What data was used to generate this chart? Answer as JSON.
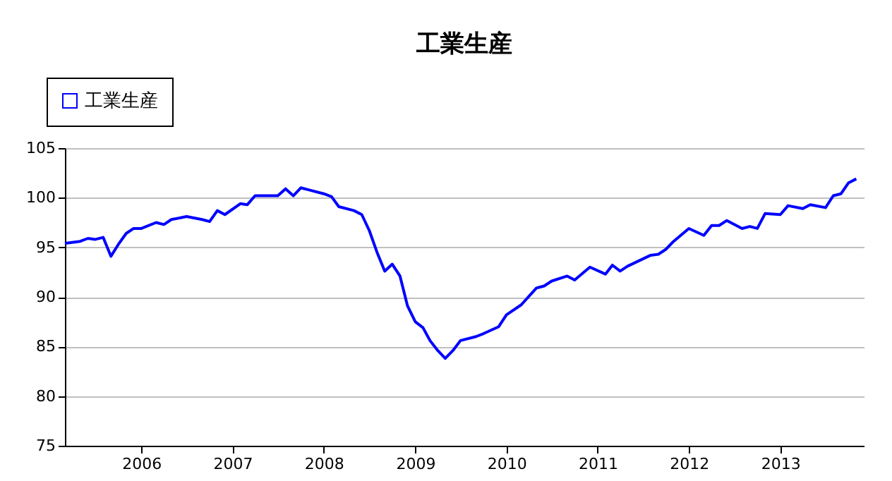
{
  "chart_data": {
    "type": "line",
    "title": "工業生産",
    "legend": "top left",
    "grid": "y",
    "line_style": "solid",
    "marker": "none",
    "xlim": [
      "2005-03",
      "2013-12"
    ],
    "xticks": [
      "2006",
      "2007",
      "2008",
      "2009",
      "2010",
      "2011",
      "2012",
      "2013"
    ],
    "ylim": [
      75,
      105
    ],
    "yticks": [
      75,
      80,
      85,
      90,
      95,
      100,
      105
    ],
    "x": [
      "2005-03",
      "2005-05",
      "2005-06",
      "2005-07",
      "2005-08",
      "2005-09",
      "2005-10",
      "2005-11",
      "2005-12",
      "2006-01",
      "2006-03",
      "2006-04",
      "2006-05",
      "2006-07",
      "2006-09",
      "2006-10",
      "2006-11",
      "2006-12",
      "2007-02",
      "2007-03",
      "2007-04",
      "2007-07",
      "2007-08",
      "2007-09",
      "2007-10",
      "2007-11",
      "2008-01",
      "2008-02",
      "2008-03",
      "2008-05",
      "2008-06",
      "2008-07",
      "2008-08",
      "2008-09",
      "2008-10",
      "2008-11",
      "2008-12",
      "2009-01",
      "2009-02",
      "2009-03",
      "2009-04",
      "2009-05",
      "2009-06",
      "2009-07",
      "2009-09",
      "2009-10",
      "2009-12",
      "2010-01",
      "2010-03",
      "2010-05",
      "2010-06",
      "2010-07",
      "2010-09",
      "2010-10",
      "2010-12",
      "2011-02",
      "2011-03",
      "2011-04",
      "2011-05",
      "2011-08",
      "2011-09",
      "2011-10",
      "2011-11",
      "2012-01",
      "2012-03",
      "2012-04",
      "2012-05",
      "2012-06",
      "2012-08",
      "2012-09",
      "2012-10",
      "2012-11",
      "2013-01",
      "2013-02",
      "2013-04",
      "2013-05",
      "2013-07",
      "2013-08",
      "2013-09",
      "2013-10",
      "2013-11"
    ],
    "series": [
      {
        "name": "工業生産",
        "color": "#0000ff",
        "values": [
          95.4,
          95.6,
          95.9,
          95.8,
          96.0,
          94.1,
          95.3,
          96.4,
          96.9,
          96.9,
          97.5,
          97.3,
          97.8,
          98.1,
          97.8,
          97.6,
          98.7,
          98.3,
          99.4,
          99.3,
          100.2,
          100.2,
          100.9,
          100.2,
          101.0,
          100.8,
          100.4,
          100.1,
          99.1,
          98.7,
          98.3,
          96.7,
          94.5,
          92.6,
          93.3,
          92.1,
          89.1,
          87.5,
          86.9,
          85.6,
          84.6,
          83.8,
          84.6,
          85.6,
          86.0,
          86.3,
          87.0,
          88.2,
          89.2,
          90.9,
          91.1,
          91.6,
          92.1,
          91.7,
          93.0,
          92.3,
          93.2,
          92.6,
          93.1,
          94.2,
          94.3,
          94.8,
          95.6,
          96.9,
          96.2,
          97.2,
          97.2,
          97.7,
          96.9,
          97.1,
          96.9,
          98.4,
          98.3,
          99.2,
          98.9,
          99.3,
          99.0,
          100.2,
          100.4,
          101.5,
          101.9
        ]
      }
    ]
  }
}
